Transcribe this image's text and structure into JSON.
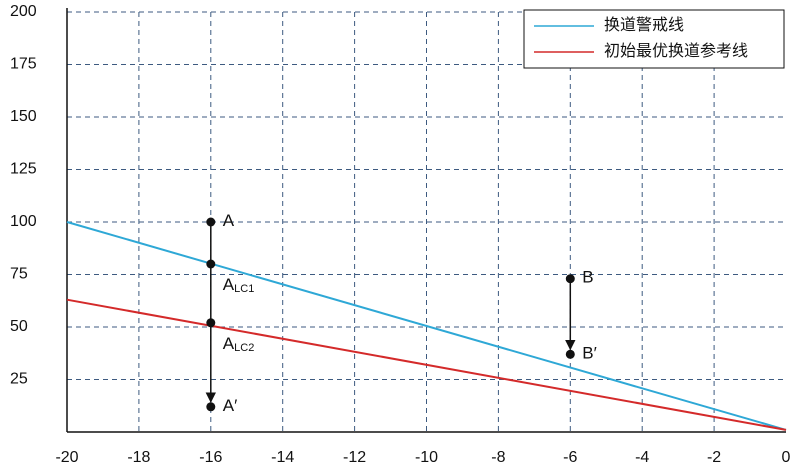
{
  "chart_data": {
    "type": "line",
    "series": [
      {
        "name": "换道警戒线",
        "color": "#2ea8d6",
        "x": [
          -20,
          0
        ],
        "values": [
          100,
          1
        ]
      },
      {
        "name": "初始最优换道参考线",
        "color": "#d42a2a",
        "x": [
          -20,
          0
        ],
        "values": [
          63,
          1
        ]
      }
    ],
    "points": [
      {
        "label": "A",
        "x": -16,
        "y": 100
      },
      {
        "label": "A",
        "sub": "LC1",
        "x": -16,
        "y": 80
      },
      {
        "label": "A",
        "sub": "LC2",
        "x": -16,
        "y": 52
      },
      {
        "label": "A′",
        "x": -16,
        "y": 12
      },
      {
        "label": "B",
        "x": -6,
        "y": 73
      },
      {
        "label": "B′",
        "x": -6,
        "y": 37
      }
    ],
    "xlim": [
      -20,
      0
    ],
    "xticks": [
      -20,
      -18,
      -16,
      -14,
      -12,
      -10,
      -8,
      -6,
      -4,
      -2,
      0
    ],
    "ylim": [
      0,
      200
    ],
    "yticks": [
      25,
      50,
      75,
      100,
      125,
      150,
      175,
      200
    ],
    "grid": true,
    "legend": "top-right"
  }
}
